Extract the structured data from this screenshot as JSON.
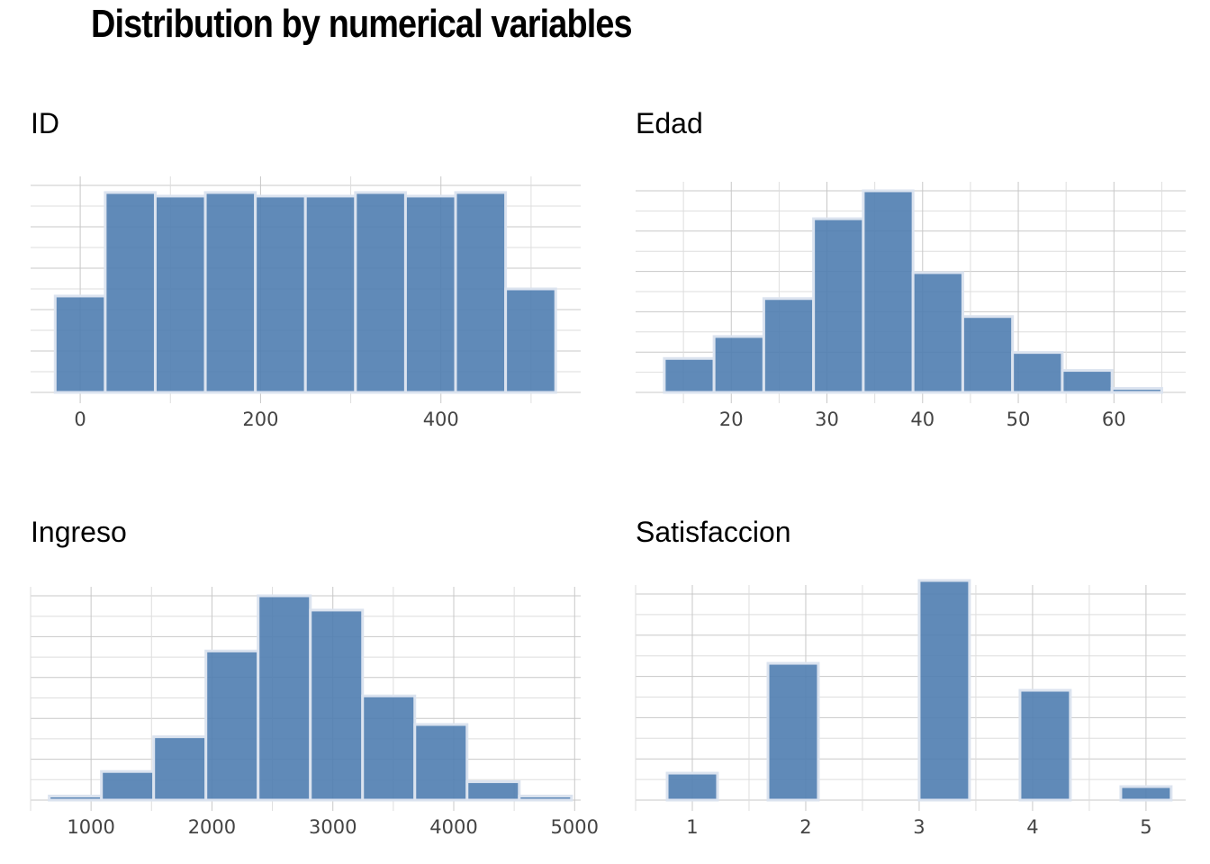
{
  "title": "Distribution by numerical variables",
  "style": {
    "bar_color": "#4f7db0",
    "bar_edge": "#dbe3ef",
    "grid": "#c8c8c8",
    "grid_minor": "#dedede"
  },
  "chart_data": [
    {
      "type": "bar",
      "title": "ID",
      "x_ticks": [
        0,
        200,
        400
      ],
      "xlim": [
        -55,
        555
      ],
      "ylim": [
        0,
        58
      ],
      "bin_width": 55.5,
      "bin_centers": [
        0,
        55.5,
        111,
        166.5,
        222,
        277.5,
        333,
        388.5,
        444,
        499.5
      ],
      "values": [
        27,
        56,
        55,
        56,
        55,
        55,
        56,
        55,
        56,
        29
      ]
    },
    {
      "type": "bar",
      "title": "Edad",
      "x_ticks": [
        20,
        30,
        40,
        50,
        60
      ],
      "xlim": [
        10,
        67.5
      ],
      "ylim": [
        0,
        101
      ],
      "bin_width": 5.2,
      "bin_centers": [
        15.6,
        20.8,
        26,
        31.2,
        36.4,
        41.6,
        46.8,
        52,
        57.2,
        62.4
      ],
      "values": [
        17,
        28,
        47,
        87,
        101,
        60,
        38,
        20,
        11,
        2
      ]
    },
    {
      "type": "bar",
      "title": "Ingreso",
      "x_ticks": [
        1000,
        2000,
        3000,
        4000,
        5000
      ],
      "xlim": [
        500,
        5050
      ],
      "ylim": [
        0,
        100
      ],
      "bin_width": 432,
      "bin_centers": [
        870,
        1302,
        1734,
        2166,
        2598,
        3030,
        3462,
        3894,
        4326,
        4758
      ],
      "values": [
        2,
        14,
        31,
        73,
        100,
        93,
        51,
        37,
        9,
        2
      ]
    },
    {
      "type": "bar",
      "title": "Satisfaccion",
      "x_ticks": [
        1,
        2,
        3,
        4,
        5
      ],
      "xlim": [
        0.5,
        5.35
      ],
      "ylim": [
        0,
        107
      ],
      "bin_width": 0.444,
      "bin_centers": [
        1,
        1.444,
        1.889,
        2.333,
        2.778,
        3.222,
        3.667,
        4.111,
        4.556,
        5
      ],
      "values": [
        14,
        0,
        71,
        0,
        0,
        114,
        0,
        57,
        0,
        7
      ]
    }
  ]
}
